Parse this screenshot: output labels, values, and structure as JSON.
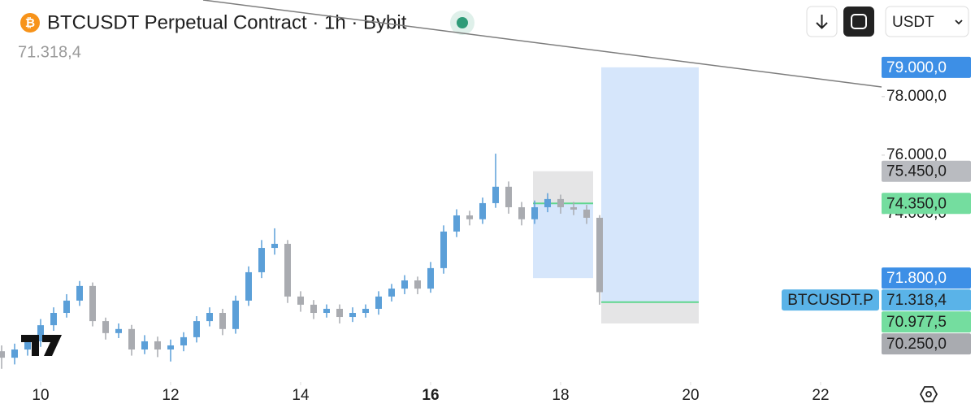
{
  "chart_data": {
    "type": "candlestick",
    "title": "BTCUSDT Perpetual Contract · 1h · Bybit",
    "last_price_text": "71.318,4",
    "currency": "USDT",
    "xlim": [
      9.375,
      22.9375
    ],
    "ylim": [
      68250,
      81300
    ],
    "xticks": [
      10,
      12,
      14,
      16,
      18,
      20,
      22
    ],
    "bold_xticks": [
      16
    ],
    "yticks": [
      {
        "value": 78000,
        "label": "78.000,0"
      },
      {
        "value": 76000,
        "label": "76.000,0"
      },
      {
        "value": 74000,
        "label": "74.000,0"
      }
    ],
    "up_color": "#5b9fd8",
    "down_color": "#a9abb0",
    "x": [
      9.4,
      9.6,
      9.8,
      10.0,
      10.2,
      10.4,
      10.6,
      10.8,
      11.0,
      11.2,
      11.4,
      11.6,
      11.8,
      12.0,
      12.2,
      12.4,
      12.6,
      12.8,
      13.0,
      13.2,
      13.4,
      13.6,
      13.8,
      14.0,
      14.2,
      14.4,
      14.6,
      14.8,
      15.0,
      15.2,
      15.4,
      15.6,
      15.8,
      16.0,
      16.2,
      16.4,
      16.6,
      16.8,
      17.0,
      17.2,
      17.4,
      17.6,
      17.8,
      18.0,
      18.2,
      18.4,
      18.6
    ],
    "open": [
      69300,
      69080,
      69360,
      69640,
      70190,
      70610,
      71030,
      71530,
      70330,
      69920,
      70060,
      69360,
      69640,
      69360,
      69500,
      69780,
      70330,
      70610,
      70060,
      71030,
      72000,
      72830,
      72970,
      71170,
      70890,
      70610,
      70750,
      70470,
      70610,
      70750,
      71170,
      71440,
      71720,
      71440,
      72140,
      73390,
      73940,
      73810,
      74360,
      74920,
      74220,
      73810,
      74220,
      74500,
      74220,
      74140,
      73860
    ],
    "high": [
      69500,
      69560,
      69840,
      70400,
      70800,
      71250,
      71700,
      71650,
      70450,
      70250,
      70200,
      69850,
      69800,
      69700,
      69950,
      70500,
      70800,
      70750,
      71200,
      72200,
      73100,
      73500,
      73100,
      71350,
      71050,
      70900,
      70900,
      70800,
      70900,
      71350,
      71600,
      71900,
      71850,
      72350,
      73600,
      74150,
      74100,
      74550,
      76050,
      75100,
      74400,
      74450,
      74700,
      74650,
      74400,
      74300,
      73950
    ],
    "low": [
      68700,
      68850,
      69150,
      69450,
      70000,
      70450,
      70850,
      70150,
      69700,
      69750,
      69150,
      69200,
      69100,
      68950,
      69300,
      69600,
      70150,
      69850,
      69900,
      70850,
      71800,
      72600,
      70950,
      70650,
      70400,
      70450,
      70250,
      70300,
      70450,
      70550,
      71000,
      71250,
      71250,
      71300,
      71950,
      73200,
      73600,
      73650,
      74200,
      74000,
      73600,
      73650,
      74050,
      74000,
      73950,
      73650,
      70890
    ],
    "close": [
      69080,
      69360,
      69640,
      70190,
      70610,
      71030,
      71530,
      70330,
      69920,
      70060,
      69360,
      69640,
      69360,
      69500,
      69780,
      70330,
      70610,
      70060,
      71030,
      72000,
      72830,
      72970,
      71170,
      70890,
      70610,
      70750,
      70470,
      70610,
      70750,
      71170,
      71440,
      71720,
      71440,
      72140,
      73390,
      73940,
      73810,
      74360,
      74920,
      74220,
      73810,
      74220,
      74500,
      74220,
      74140,
      73860,
      71318.4
    ],
    "trendline": {
      "x": [
        12.5,
        22.9375
      ],
      "y": [
        81300,
        78330
      ],
      "color": "#7d7d7d"
    },
    "positions": [
      {
        "x": [
          17.575,
          18.5
        ],
        "entry": 74350,
        "stop": 75450,
        "target": 71800
      },
      {
        "x": [
          18.625,
          20.125
        ],
        "entry": 70977.5,
        "stop": 70250,
        "target": 79000
      }
    ],
    "price_lines": [
      {
        "value": 79000,
        "label": "79.000,0",
        "color": "#3d8fe6",
        "text_color": "#ffffff"
      },
      {
        "value": 75450,
        "label": "75.450,0",
        "color": "#b9bbc0",
        "text_color": "#1e1e1e"
      },
      {
        "value": 74350,
        "label": "74.350,0",
        "color": "#74dd9f",
        "text_color": "#1e1e1e"
      },
      {
        "value": 71800,
        "label": "71.800,0",
        "color": "#3d8fe6",
        "text_color": "#ffffff"
      },
      {
        "value": 71318.4,
        "label": "71.318,4",
        "color": "#5ab3e8",
        "text_color": "#1e1e1e",
        "tag": "BTCUSDT.P"
      },
      {
        "value": 70977.5,
        "label": "70.977,5",
        "color": "#74dd9f",
        "text_color": "#1e1e1e"
      },
      {
        "value": 70250,
        "label": "70.250,0",
        "color": "#a9abb0",
        "text_color": "#1e1e1e"
      }
    ]
  }
}
